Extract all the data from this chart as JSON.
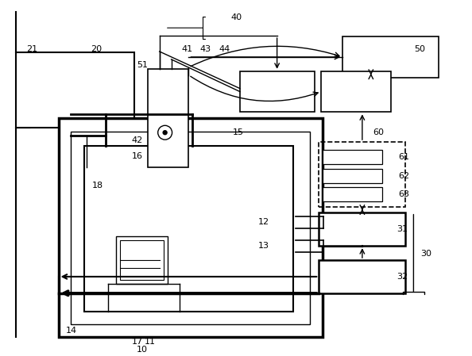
{
  "fig_width": 5.94,
  "fig_height": 4.49,
  "dpi": 100,
  "bg_color": "#ffffff",
  "line_color": "#000000"
}
